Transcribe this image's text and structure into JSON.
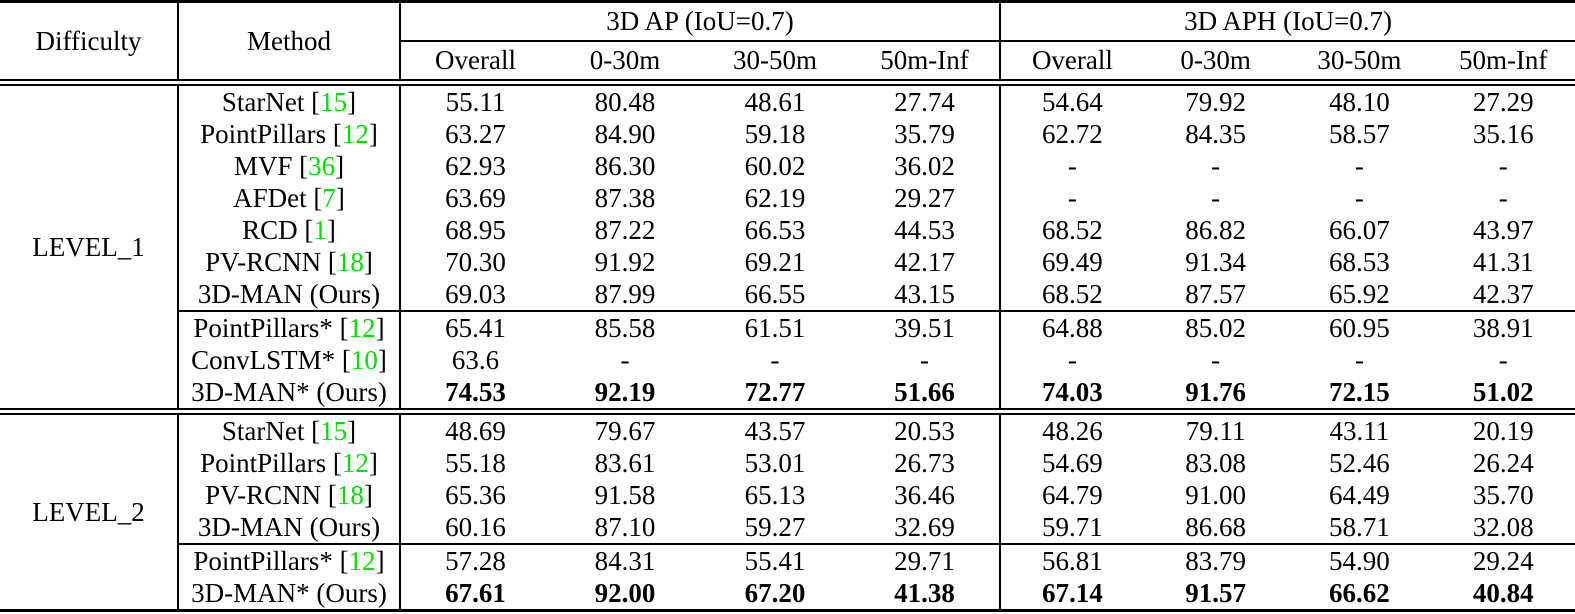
{
  "colors": {
    "citation_green": "#00E000",
    "text": "#000000",
    "rule": "#000000"
  },
  "header": {
    "difficulty": "Difficulty",
    "method": "Method",
    "groups": [
      "3D AP (IoU=0.7)",
      "3D APH (IoU=0.7)"
    ],
    "subcols": [
      "Overall",
      "0-30m",
      "30-50m",
      "50m-Inf"
    ]
  },
  "sections": [
    {
      "difficulty": "LEVEL_1",
      "rows": [
        {
          "name": "StarNet",
          "star": false,
          "cite": "15",
          "ours": false,
          "bold": false,
          "group": "main",
          "ap": [
            "55.11",
            "80.48",
            "48.61",
            "27.74"
          ],
          "aph": [
            "54.64",
            "79.92",
            "48.10",
            "27.29"
          ]
        },
        {
          "name": "PointPillars",
          "star": false,
          "cite": "12",
          "ours": false,
          "bold": false,
          "group": "main",
          "ap": [
            "63.27",
            "84.90",
            "59.18",
            "35.79"
          ],
          "aph": [
            "62.72",
            "84.35",
            "58.57",
            "35.16"
          ]
        },
        {
          "name": "MVF",
          "star": false,
          "cite": "36",
          "ours": false,
          "bold": false,
          "group": "main",
          "ap": [
            "62.93",
            "86.30",
            "60.02",
            "36.02"
          ],
          "aph": [
            "-",
            "-",
            "-",
            "-"
          ]
        },
        {
          "name": "AFDet",
          "star": false,
          "cite": "7",
          "ours": false,
          "bold": false,
          "group": "main",
          "ap": [
            "63.69",
            "87.38",
            "62.19",
            "29.27"
          ],
          "aph": [
            "-",
            "-",
            "-",
            "-"
          ]
        },
        {
          "name": "RCD",
          "star": false,
          "cite": "1",
          "ours": false,
          "bold": false,
          "group": "main",
          "ap": [
            "68.95",
            "87.22",
            "66.53",
            "44.53"
          ],
          "aph": [
            "68.52",
            "86.82",
            "66.07",
            "43.97"
          ]
        },
        {
          "name": "PV-RCNN",
          "star": false,
          "cite": "18",
          "ours": false,
          "bold": false,
          "group": "main",
          "ap": [
            "70.30",
            "91.92",
            "69.21",
            "42.17"
          ],
          "aph": [
            "69.49",
            "91.34",
            "68.53",
            "41.31"
          ]
        },
        {
          "name": "3D-MAN",
          "star": false,
          "cite": null,
          "ours": true,
          "bold": false,
          "group": "main",
          "ap": [
            "69.03",
            "87.99",
            "66.55",
            "43.15"
          ],
          "aph": [
            "68.52",
            "87.57",
            "65.92",
            "42.37"
          ]
        },
        {
          "name": "PointPillars",
          "star": true,
          "cite": "12",
          "ours": false,
          "bold": false,
          "group": "star",
          "ap": [
            "65.41",
            "85.58",
            "61.51",
            "39.51"
          ],
          "aph": [
            "64.88",
            "85.02",
            "60.95",
            "38.91"
          ]
        },
        {
          "name": "ConvLSTM",
          "star": true,
          "cite": "10",
          "ours": false,
          "bold": false,
          "group": "star",
          "ap": [
            "63.6",
            "-",
            "-",
            "-"
          ],
          "aph": [
            "-",
            "-",
            "-",
            "-"
          ]
        },
        {
          "name": "3D-MAN",
          "star": true,
          "cite": null,
          "ours": true,
          "bold": true,
          "group": "star",
          "ap": [
            "74.53",
            "92.19",
            "72.77",
            "51.66"
          ],
          "aph": [
            "74.03",
            "91.76",
            "72.15",
            "51.02"
          ]
        }
      ]
    },
    {
      "difficulty": "LEVEL_2",
      "rows": [
        {
          "name": "StarNet",
          "star": false,
          "cite": "15",
          "ours": false,
          "bold": false,
          "group": "main",
          "ap": [
            "48.69",
            "79.67",
            "43.57",
            "20.53"
          ],
          "aph": [
            "48.26",
            "79.11",
            "43.11",
            "20.19"
          ]
        },
        {
          "name": "PointPillars",
          "star": false,
          "cite": "12",
          "ours": false,
          "bold": false,
          "group": "main",
          "ap": [
            "55.18",
            "83.61",
            "53.01",
            "26.73"
          ],
          "aph": [
            "54.69",
            "83.08",
            "52.46",
            "26.24"
          ]
        },
        {
          "name": "PV-RCNN",
          "star": false,
          "cite": "18",
          "ours": false,
          "bold": false,
          "group": "main",
          "ap": [
            "65.36",
            "91.58",
            "65.13",
            "36.46"
          ],
          "aph": [
            "64.79",
            "91.00",
            "64.49",
            "35.70"
          ]
        },
        {
          "name": "3D-MAN",
          "star": false,
          "cite": null,
          "ours": true,
          "bold": false,
          "group": "main",
          "ap": [
            "60.16",
            "87.10",
            "59.27",
            "32.69"
          ],
          "aph": [
            "59.71",
            "86.68",
            "58.71",
            "32.08"
          ]
        },
        {
          "name": "PointPillars",
          "star": true,
          "cite": "12",
          "ours": false,
          "bold": false,
          "group": "star",
          "ap": [
            "57.28",
            "84.31",
            "55.41",
            "29.71"
          ],
          "aph": [
            "56.81",
            "83.79",
            "54.90",
            "29.24"
          ]
        },
        {
          "name": "3D-MAN",
          "star": true,
          "cite": null,
          "ours": true,
          "bold": true,
          "group": "star",
          "ap": [
            "67.61",
            "92.00",
            "67.20",
            "41.38"
          ],
          "aph": [
            "67.14",
            "91.57",
            "66.62",
            "40.84"
          ]
        }
      ]
    }
  ],
  "ours_suffix": " (Ours)"
}
